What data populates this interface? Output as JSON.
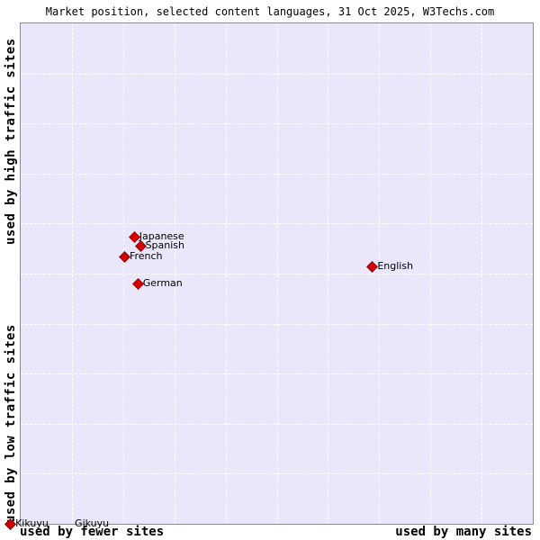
{
  "header": {
    "title": "Market position, selected content languages, 31 Oct 2025, W3Techs.com"
  },
  "chart_data": {
    "type": "scatter",
    "title": "Market position, selected content languages, 31 Oct 2025, W3Techs.com",
    "x_axis": {
      "left_label": "used by fewer sites",
      "right_label": "used by many sites"
    },
    "y_axis": {
      "top_label": "used by high traffic sites",
      "bottom_label": "used by low traffic sites"
    },
    "legend": "none",
    "grid": true,
    "marker_color": "#d60000",
    "plot_background": "#e9e7f9",
    "axis_scale": "qualitative (no numeric ticks shown)",
    "points": [
      {
        "label": "Japanese",
        "x": 0.221,
        "y": 0.427
      },
      {
        "label": "Spanish",
        "x": 0.233,
        "y": 0.445
      },
      {
        "label": "French",
        "x": 0.202,
        "y": 0.465
      },
      {
        "label": "German",
        "x": 0.228,
        "y": 0.519
      },
      {
        "label": "English",
        "x": 0.686,
        "y": 0.486
      },
      {
        "label": "Kikuyu",
        "x": -0.021,
        "y": 1.0
      },
      {
        "label": "Gikuyu",
        "x": -0.021,
        "y": 1.0,
        "label_dx": 72
      }
    ]
  }
}
